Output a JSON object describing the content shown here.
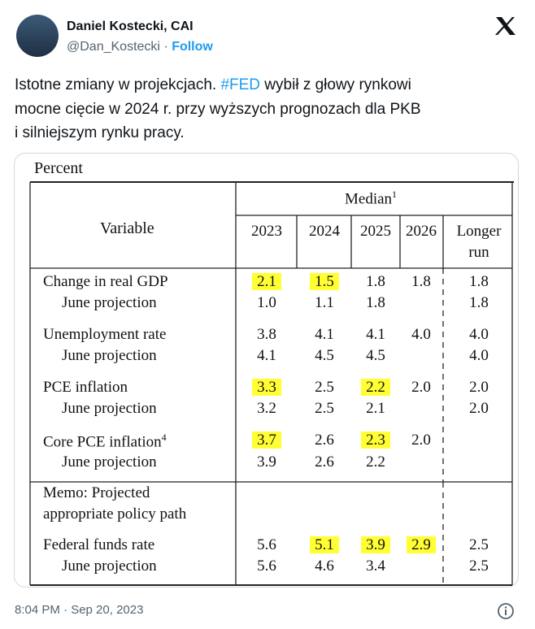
{
  "tweet": {
    "author": {
      "name": "Daniel Kostecki, CAI",
      "handle": "@Dan_Kostecki",
      "follow": "Follow"
    },
    "text_lines": [
      [
        "Istotne zmiany w projekcjach. ",
        {
          "hashtag": "#FED"
        },
        " wybił z głowy rynkowi"
      ],
      [
        "mocne cięcie w 2024 r. przy wyższych prognozach dla PKB"
      ],
      [
        "i silniejszym rynku pracy."
      ]
    ],
    "timestamp": "8:04 PM · Sep 20, 2023"
  },
  "table": {
    "unit": "Percent",
    "group_header": "Median",
    "group_note": "1",
    "variable_header": "Variable",
    "columns": [
      "2023",
      "2024",
      "2025",
      "2026",
      "Longer run"
    ],
    "highlight_color": "#ffff33",
    "rows": [
      {
        "label": "Change in real GDP",
        "values": [
          "2.1",
          "1.5",
          "1.8",
          "1.8",
          "1.8"
        ],
        "highlight": [
          0,
          1
        ]
      },
      {
        "label": "June projection",
        "indent": true,
        "values": [
          "1.0",
          "1.1",
          "1.8",
          null,
          "1.8"
        ]
      },
      {
        "label": "Unemployment rate",
        "values": [
          "3.8",
          "4.1",
          "4.1",
          "4.0",
          "4.0"
        ]
      },
      {
        "label": "June projection",
        "indent": true,
        "values": [
          "4.1",
          "4.5",
          "4.5",
          null,
          "4.0"
        ]
      },
      {
        "label": "PCE inflation",
        "values": [
          "3.3",
          "2.5",
          "2.2",
          "2.0",
          "2.0"
        ],
        "highlight": [
          0,
          2
        ]
      },
      {
        "label": "June projection",
        "indent": true,
        "values": [
          "3.2",
          "2.5",
          "2.1",
          null,
          "2.0"
        ]
      },
      {
        "label": "Core PCE inflation",
        "note": "4",
        "values": [
          "3.7",
          "2.6",
          "2.3",
          "2.0",
          null
        ],
        "highlight": [
          0,
          2
        ]
      },
      {
        "label": "June projection",
        "indent": true,
        "values": [
          "3.9",
          "2.6",
          "2.2",
          null,
          null
        ]
      },
      {
        "label": "Federal funds rate",
        "values": [
          "5.6",
          "5.1",
          "3.9",
          "2.9",
          "2.5"
        ],
        "highlight": [
          1,
          2,
          3
        ]
      },
      {
        "label": "June projection",
        "indent": true,
        "values": [
          "5.6",
          "4.6",
          "3.4",
          null,
          "2.5"
        ]
      }
    ],
    "memo": [
      "Memo: Projected",
      "appropriate policy path"
    ]
  }
}
